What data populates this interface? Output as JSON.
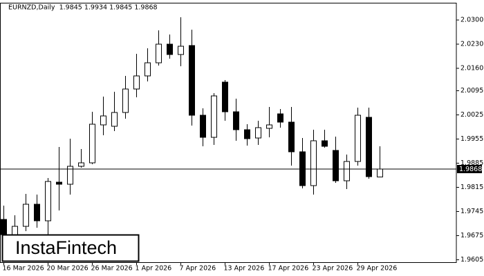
{
  "chart_data": {
    "type": "candlestick",
    "title": "EURNZD,Daily  1.9845 1.9934 1.9845 1.9868",
    "watermark": "InstaFintech",
    "categories": [
      "16 Mar 2026",
      null,
      null,
      null,
      "20 Mar 2026",
      null,
      null,
      null,
      "26 Mar 2026",
      null,
      null,
      null,
      "1 Apr 2026",
      null,
      null,
      null,
      "7 Apr 2026",
      null,
      null,
      null,
      "13 Apr 2026",
      null,
      null,
      null,
      "17 Apr 2026",
      null,
      null,
      null,
      "23 Apr 2026",
      null,
      null,
      null,
      "29 Apr 2026",
      null,
      null
    ],
    "open": [
      1.9722,
      1.9678,
      1.9702,
      1.9766,
      1.9718,
      1.983,
      1.9824,
      1.9876,
      1.9886,
      1.9996,
      1.9992,
      2.0032,
      2.01,
      2.0138,
      2.0176,
      2.023,
      2.02,
      2.0226,
      2.0024,
      1.996,
      2.012,
      2.0034,
      1.9982,
      1.9958,
      1.9986,
      2.0028,
      2.0004,
      1.9918,
      1.982,
      1.995,
      1.9922,
      1.9834,
      1.989,
      2.0018,
      1.9845
    ],
    "high": [
      1.9762,
      1.9734,
      1.9796,
      1.9794,
      1.9842,
      1.9932,
      1.9956,
      1.9926,
      2.0034,
      2.0078,
      2.0092,
      2.0138,
      2.0202,
      2.0218,
      2.027,
      2.0258,
      2.0308,
      2.0272,
      2.0044,
      2.0088,
      2.0126,
      2.0072,
      1.9998,
      2.0008,
      2.0048,
      2.0042,
      2.0048,
      1.9958,
      1.9982,
      1.9982,
      1.9962,
      1.991,
      2.0046,
      2.0046,
      1.9934
    ],
    "low": [
      1.9668,
      1.9668,
      1.9688,
      1.9698,
      1.9678,
      1.9748,
      1.9794,
      1.9872,
      1.9882,
      1.9966,
      1.9978,
      2.0014,
      2.0076,
      2.0122,
      2.0168,
      2.0188,
      2.0166,
      1.9994,
      1.9934,
      1.9938,
      2.0008,
      1.995,
      1.9936,
      1.9938,
      1.996,
      1.9988,
      1.9878,
      1.9812,
      1.9794,
      1.993,
      1.9828,
      1.981,
      1.9878,
      1.984,
      1.9845
    ],
    "close": [
      1.9678,
      1.9702,
      1.9766,
      1.9718,
      1.9832,
      1.9824,
      1.9876,
      1.9886,
      1.9998,
      2.0022,
      2.0032,
      2.01,
      2.0138,
      2.0176,
      2.023,
      2.02,
      2.0224,
      2.0024,
      1.996,
      2.008,
      2.0034,
      1.9982,
      1.9956,
      1.9988,
      1.9996,
      2.0004,
      1.9918,
      1.982,
      1.995,
      1.9934,
      1.9834,
      1.989,
      2.0024,
      1.9846,
      1.9868
    ],
    "up_color": "#ffffff",
    "down_color": "#000000",
    "line_color": "#000000",
    "current_price": 1.9868,
    "ylim": [
      1.9598,
      2.035
    ],
    "yticks": [
      {
        "value": 2.03,
        "label": "2.0300"
      },
      {
        "value": 2.023,
        "label": "2.0230"
      },
      {
        "value": 2.016,
        "label": "2.0160"
      },
      2.0095,
      2.0025,
      1.9955,
      1.9885,
      1.9815,
      1.9745,
      1.9675,
      1.9605
    ]
  }
}
